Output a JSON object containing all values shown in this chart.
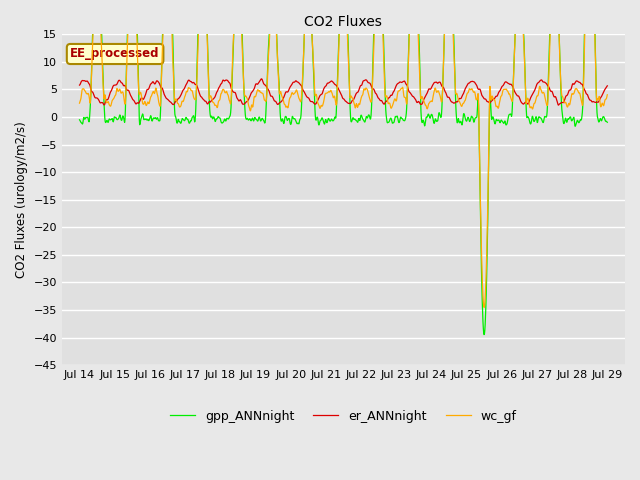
{
  "title": "CO2 Fluxes",
  "ylabel": "CO2 Fluxes (urology/m2/s)",
  "ylim": [
    -45,
    15
  ],
  "yticks": [
    15,
    10,
    5,
    0,
    -5,
    -10,
    -15,
    -20,
    -25,
    -30,
    -35,
    -40,
    -45
  ],
  "fig_facecolor": "#e8e8e8",
  "axes_facecolor": "#e0e0e0",
  "annotation_text": "EE_processed",
  "annotation_color": "#aa0000",
  "annotation_bg": "#ffffcc",
  "annotation_edge": "#aa8800",
  "legend_entries": [
    "gpp_ANNnight",
    "er_ANNnight",
    "wc_gf"
  ],
  "line_colors": [
    "#00ee00",
    "#dd0000",
    "#ffaa00"
  ],
  "n_days": 15,
  "points_per_day": 96,
  "seed": 12345
}
